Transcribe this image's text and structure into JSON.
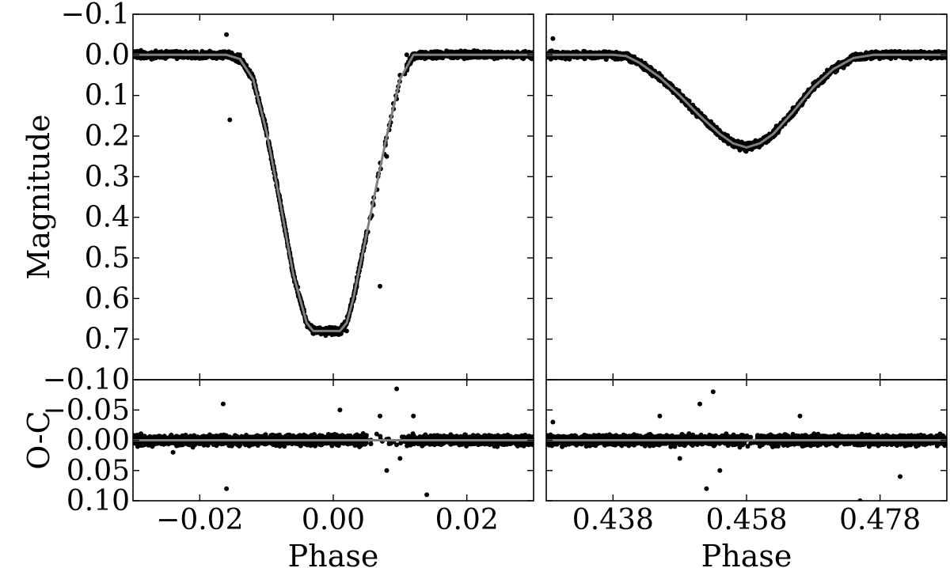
{
  "colors": {
    "points": "#000000",
    "model": "#808080",
    "frame": "#000000",
    "background": "#ffffff"
  },
  "chart_data": [
    {
      "type": "scatter",
      "panel": "primary-eclipse-light-curve",
      "xlabel": "",
      "ylabel": "Magnitude",
      "xlim": [
        -0.03,
        0.03
      ],
      "ylim": [
        0.8,
        -0.1
      ],
      "y_inverted": true,
      "xticks": [
        -0.02,
        0.0,
        0.02
      ],
      "xtick_labels": [],
      "yticks": [
        -0.1,
        0.0,
        0.1,
        0.2,
        0.3,
        0.4,
        0.5,
        0.6,
        0.7
      ],
      "ytick_labels": [
        "−0.1",
        "0.0",
        "0.1",
        "0.2",
        "0.3",
        "0.4",
        "0.5",
        "0.6",
        "0.7"
      ],
      "series": [
        {
          "kind": "observations",
          "x": [
            -0.029,
            -0.026,
            -0.023,
            -0.02,
            -0.0175,
            -0.016,
            -0.0155,
            -0.014,
            -0.012,
            -0.01,
            -0.008,
            -0.006,
            -0.004,
            -0.003,
            -0.002,
            -0.001,
            0.0,
            0.001,
            0.002,
            0.003,
            0.004,
            0.006,
            0.007,
            0.008,
            0.009,
            0.01,
            0.011,
            0.012,
            0.014,
            0.018,
            0.022,
            0.026,
            0.029
          ],
          "y": [
            0.0,
            0.0,
            0.0,
            0.0,
            0.0,
            -0.05,
            0.16,
            0.0,
            0.06,
            0.19,
            0.36,
            0.54,
            0.66,
            0.68,
            0.68,
            0.68,
            0.68,
            0.68,
            0.68,
            0.6,
            0.52,
            0.37,
            0.57,
            0.25,
            0.12,
            0.05,
            0.0,
            0.0,
            0.0,
            0.0,
            0.0,
            0.0,
            0.0
          ]
        },
        {
          "kind": "model",
          "x": [
            -0.03,
            -0.016,
            -0.014,
            -0.012,
            -0.01,
            -0.008,
            -0.006,
            -0.004,
            -0.003,
            -0.002,
            -0.001,
            0.0,
            0.001,
            0.002,
            0.003,
            0.004,
            0.006,
            0.008,
            0.01,
            0.012,
            0.014,
            0.03
          ],
          "y": [
            0.0,
            0.0,
            0.01,
            0.06,
            0.19,
            0.36,
            0.54,
            0.66,
            0.68,
            0.68,
            0.68,
            0.68,
            0.68,
            0.66,
            0.6,
            0.52,
            0.36,
            0.2,
            0.06,
            0.0,
            0.0,
            0.0
          ]
        }
      ]
    },
    {
      "type": "scatter",
      "panel": "secondary-eclipse-light-curve",
      "xlabel": "",
      "ylabel": "",
      "xlim": [
        0.428,
        0.488
      ],
      "ylim": [
        0.8,
        -0.1
      ],
      "y_inverted": true,
      "xticks": [
        0.438,
        0.458,
        0.478
      ],
      "xtick_labels": [],
      "yticks": [
        -0.1,
        0.0,
        0.1,
        0.2,
        0.3,
        0.4,
        0.5,
        0.6,
        0.7
      ],
      "ytick_labels": [],
      "series": [
        {
          "kind": "observations",
          "x": [
            0.429,
            0.432,
            0.435,
            0.438,
            0.441,
            0.444,
            0.447,
            0.45,
            0.452,
            0.454,
            0.456,
            0.458,
            0.46,
            0.462,
            0.465,
            0.468,
            0.471,
            0.474,
            0.477,
            0.48,
            0.483,
            0.487
          ],
          "y": [
            -0.04,
            0.0,
            0.0,
            0.0,
            0.01,
            0.04,
            0.08,
            0.13,
            0.17,
            0.2,
            0.22,
            0.23,
            0.22,
            0.19,
            0.13,
            0.07,
            0.03,
            0.0,
            0.0,
            0.0,
            0.0,
            0.0
          ]
        },
        {
          "kind": "model",
          "x": [
            0.428,
            0.438,
            0.44,
            0.442,
            0.445,
            0.448,
            0.451,
            0.454,
            0.456,
            0.458,
            0.46,
            0.462,
            0.465,
            0.468,
            0.471,
            0.474,
            0.477,
            0.488
          ],
          "y": [
            0.0,
            0.0,
            0.003,
            0.02,
            0.055,
            0.1,
            0.15,
            0.195,
            0.218,
            0.228,
            0.218,
            0.195,
            0.14,
            0.08,
            0.035,
            0.008,
            0.0,
            0.0
          ]
        }
      ]
    },
    {
      "type": "scatter",
      "panel": "primary-eclipse-residuals",
      "xlabel": "Phase",
      "ylabel": "O-C",
      "xlim": [
        -0.03,
        0.03
      ],
      "ylim": [
        0.1,
        -0.1
      ],
      "y_inverted": true,
      "xticks": [
        -0.02,
        0.0,
        0.02
      ],
      "xtick_labels": [
        "−0.02",
        "0.00",
        "0.02"
      ],
      "yticks": [
        -0.1,
        -0.05,
        0.0,
        0.05,
        0.1
      ],
      "ytick_labels": [
        "−0.10",
        "−0.05",
        "0.00",
        "0.05",
        "0.10"
      ],
      "series": [
        {
          "kind": "residuals",
          "x": [
            -0.028,
            -0.024,
            -0.02,
            -0.0165,
            -0.016,
            -0.012,
            -0.008,
            -0.004,
            0.0,
            0.001,
            0.004,
            0.007,
            0.008,
            0.0095,
            0.01,
            0.012,
            0.014,
            0.02,
            0.025,
            0.029
          ],
          "y": [
            0.0,
            0.02,
            0.0,
            -0.06,
            0.08,
            0.0,
            0.01,
            0.0,
            0.0,
            -0.05,
            0.01,
            -0.04,
            0.05,
            -0.085,
            0.03,
            -0.04,
            0.09,
            0.0,
            0.0,
            0.0
          ]
        },
        {
          "kind": "zero-line",
          "x": [
            -0.03,
            0.03
          ],
          "y": [
            0.0,
            0.0
          ]
        }
      ]
    },
    {
      "type": "scatter",
      "panel": "secondary-eclipse-residuals",
      "xlabel": "Phase",
      "ylabel": "",
      "xlim": [
        0.428,
        0.488
      ],
      "ylim": [
        0.1,
        -0.1
      ],
      "y_inverted": true,
      "xticks": [
        0.438,
        0.458,
        0.478
      ],
      "xtick_labels": [
        "0.438",
        "0.458",
        "0.478"
      ],
      "yticks": [
        -0.1,
        -0.05,
        0.0,
        0.05,
        0.1
      ],
      "ytick_labels": [],
      "series": [
        {
          "kind": "residuals",
          "x": [
            0.429,
            0.434,
            0.44,
            0.445,
            0.448,
            0.451,
            0.452,
            0.453,
            0.454,
            0.457,
            0.46,
            0.466,
            0.471,
            0.475,
            0.481,
            0.487
          ],
          "y": [
            -0.03,
            0.01,
            0.0,
            -0.04,
            0.03,
            -0.06,
            0.08,
            -0.08,
            0.05,
            0.0,
            0.01,
            -0.04,
            0.0,
            0.1,
            0.06,
            0.0
          ]
        },
        {
          "kind": "zero-line",
          "x": [
            0.428,
            0.488
          ],
          "y": [
            0.0,
            0.0
          ]
        }
      ]
    }
  ]
}
